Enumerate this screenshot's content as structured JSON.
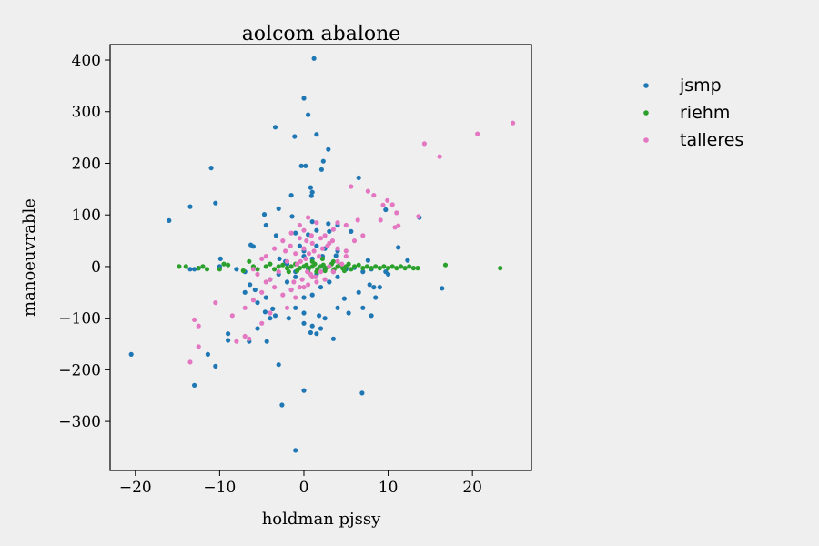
{
  "chart_data": {
    "type": "scatter",
    "title": "aolcom abalone",
    "xlabel": "holdman pjssy",
    "ylabel": "manoeuvrable",
    "xlim": [
      -23,
      27
    ],
    "ylim": [
      -395,
      430
    ],
    "xticks": [
      -20,
      -10,
      0,
      10,
      20
    ],
    "yticks": [
      -300,
      -200,
      -100,
      0,
      100,
      200,
      300,
      400
    ],
    "xtick_labels": [
      "−20",
      "−10",
      "0",
      "10",
      "20"
    ],
    "ytick_labels": [
      "−300",
      "−200",
      "−100",
      "0",
      "100",
      "200",
      "300",
      "400"
    ],
    "grid": false,
    "legend_position": "outside-right",
    "series": [
      {
        "name": "jsmp",
        "color": "#1f77b4",
        "points": [
          [
            1.2,
            403
          ],
          [
            0,
            326
          ],
          [
            0.5,
            294
          ],
          [
            -3.4,
            270
          ],
          [
            -1.1,
            252
          ],
          [
            1.5,
            256
          ],
          [
            2.9,
            227
          ],
          [
            -11,
            191
          ],
          [
            -0.3,
            195
          ],
          [
            0.2,
            195
          ],
          [
            2.3,
            204
          ],
          [
            2.1,
            188
          ],
          [
            6.5,
            172
          ],
          [
            -16,
            89
          ],
          [
            -13.5,
            116
          ],
          [
            -10.5,
            123
          ],
          [
            -1.5,
            138
          ],
          [
            0.8,
            153
          ],
          [
            0.9,
            137
          ],
          [
            1,
            144
          ],
          [
            -3,
            112
          ],
          [
            -4.7,
            101
          ],
          [
            -4.5,
            80
          ],
          [
            -1.4,
            97
          ],
          [
            9.7,
            110
          ],
          [
            13.7,
            95
          ],
          [
            1,
            87
          ],
          [
            2.9,
            83
          ],
          [
            4,
            80
          ],
          [
            -6.3,
            42
          ],
          [
            -6,
            39
          ],
          [
            -3.3,
            60
          ],
          [
            -1,
            65
          ],
          [
            0.5,
            62
          ],
          [
            1.5,
            70
          ],
          [
            3,
            68
          ],
          [
            5.6,
            68
          ],
          [
            -2.9,
            15
          ],
          [
            -2.2,
            10
          ],
          [
            0,
            20
          ],
          [
            1,
            15
          ],
          [
            2.2,
            20
          ],
          [
            3.8,
            21
          ],
          [
            11.2,
            37
          ],
          [
            12.3,
            12
          ],
          [
            7.6,
            12
          ],
          [
            -9.9,
            15
          ],
          [
            -13.5,
            -5
          ],
          [
            -13,
            -5
          ],
          [
            -12.5,
            -3
          ],
          [
            -10,
            0
          ],
          [
            -4,
            -25
          ],
          [
            -6.4,
            -35
          ],
          [
            -7,
            -50
          ],
          [
            -5.8,
            -45
          ],
          [
            -4.6,
            -88
          ],
          [
            -3.7,
            -82
          ],
          [
            -3.4,
            -95
          ],
          [
            -4,
            -100
          ],
          [
            -5.5,
            -120
          ],
          [
            -4.4,
            -145
          ],
          [
            -6.5,
            -145
          ],
          [
            -9,
            -130
          ],
          [
            -9,
            -143
          ],
          [
            -11.4,
            -170
          ],
          [
            -10.5,
            -193
          ],
          [
            -13,
            -230
          ],
          [
            -20.5,
            -170
          ],
          [
            -3,
            -190
          ],
          [
            0,
            -240
          ],
          [
            -2.6,
            -268
          ],
          [
            6.9,
            -245
          ],
          [
            -1,
            -356
          ],
          [
            0,
            -110
          ],
          [
            1,
            -115
          ],
          [
            2,
            -120
          ],
          [
            1.5,
            -130
          ],
          [
            3.5,
            -140
          ],
          [
            0.8,
            -128
          ],
          [
            0,
            -90
          ],
          [
            -1,
            -80
          ],
          [
            -1.8,
            -100
          ],
          [
            1.8,
            -95
          ],
          [
            2.5,
            -100
          ],
          [
            4,
            -80
          ],
          [
            5.3,
            -90
          ],
          [
            7,
            -80
          ],
          [
            4.8,
            -62
          ],
          [
            6.5,
            -50
          ],
          [
            7.8,
            -35
          ],
          [
            8.3,
            -40
          ],
          [
            9,
            -40
          ],
          [
            8.5,
            -60
          ],
          [
            8,
            -95
          ],
          [
            16.4,
            -42
          ],
          [
            2,
            -40
          ],
          [
            3,
            -30
          ],
          [
            4,
            -20
          ],
          [
            1,
            -20
          ],
          [
            -1,
            -20
          ],
          [
            -1.5,
            -45
          ],
          [
            0,
            -60
          ],
          [
            1,
            -55
          ],
          [
            3,
            -30
          ],
          [
            -2,
            5
          ],
          [
            -1,
            -10
          ],
          [
            0.5,
            -5
          ],
          [
            1.5,
            -15
          ],
          [
            2.5,
            -5
          ],
          [
            3.5,
            -10
          ],
          [
            5,
            -5
          ],
          [
            7,
            -10
          ],
          [
            10,
            -15
          ],
          [
            9.7,
            -10
          ],
          [
            8,
            -5
          ],
          [
            6,
            -2
          ],
          [
            -7,
            -10
          ],
          [
            -8,
            -5
          ],
          [
            -3,
            -15
          ],
          [
            -2,
            -30
          ],
          [
            -4.5,
            -60
          ],
          [
            -5.5,
            -70
          ],
          [
            0,
            30
          ],
          [
            1.5,
            40
          ],
          [
            2.5,
            35
          ],
          [
            4,
            30
          ],
          [
            -0.5,
            40
          ]
        ]
      },
      {
        "name": "riehm",
        "color": "#2ca02c",
        "points": [
          [
            -14.8,
            0
          ],
          [
            -14,
            0
          ],
          [
            -12.5,
            -3
          ],
          [
            -11.5,
            -5
          ],
          [
            -12,
            0
          ],
          [
            -9.5,
            5
          ],
          [
            -9,
            3
          ],
          [
            -10,
            -5
          ],
          [
            -7.2,
            -8
          ],
          [
            -6.5,
            10
          ],
          [
            -6,
            0
          ],
          [
            -5.5,
            -5
          ],
          [
            -4.5,
            0
          ],
          [
            -4,
            5
          ],
          [
            -3.5,
            -5
          ],
          [
            -3,
            0
          ],
          [
            -2.5,
            3
          ],
          [
            -2,
            -3
          ],
          [
            -1.5,
            0
          ],
          [
            -1,
            5
          ],
          [
            -0.5,
            -3
          ],
          [
            0,
            0
          ],
          [
            0.3,
            3
          ],
          [
            0.6,
            -3
          ],
          [
            1,
            0
          ],
          [
            1.3,
            5
          ],
          [
            1.6,
            -5
          ],
          [
            2,
            0
          ],
          [
            2.3,
            3
          ],
          [
            2.6,
            -3
          ],
          [
            3,
            0
          ],
          [
            3.3,
            5
          ],
          [
            3.6,
            -5
          ],
          [
            4,
            0
          ],
          [
            4.3,
            3
          ],
          [
            4.6,
            -3
          ],
          [
            5,
            0
          ],
          [
            5.3,
            5
          ],
          [
            5.6,
            -5
          ],
          [
            6,
            0
          ],
          [
            6.5,
            3
          ],
          [
            7,
            -3
          ],
          [
            7.5,
            0
          ],
          [
            8,
            -3
          ],
          [
            8.5,
            0
          ],
          [
            9,
            -3
          ],
          [
            9.5,
            0
          ],
          [
            10,
            -3
          ],
          [
            10.5,
            0
          ],
          [
            11,
            -3
          ],
          [
            11.5,
            0
          ],
          [
            12,
            -3
          ],
          [
            12.5,
            0
          ],
          [
            13,
            -3
          ],
          [
            13.5,
            -3
          ],
          [
            16.8,
            3
          ],
          [
            23.3,
            -3
          ],
          [
            2.2,
            15
          ],
          [
            3.5,
            10
          ],
          [
            1,
            10
          ],
          [
            0.5,
            -10
          ],
          [
            1.5,
            -10
          ],
          [
            2.5,
            -8
          ],
          [
            3.5,
            -8
          ],
          [
            -0.8,
            -8
          ],
          [
            -1.8,
            -10
          ],
          [
            4.8,
            -8
          ]
        ]
      },
      {
        "name": "talleres",
        "color": "#e377c2",
        "points": [
          [
            24.8,
            278
          ],
          [
            20.6,
            257
          ],
          [
            14.3,
            238
          ],
          [
            16.1,
            213
          ],
          [
            5.6,
            155
          ],
          [
            7.6,
            146
          ],
          [
            8.3,
            138
          ],
          [
            9.9,
            128
          ],
          [
            10.5,
            120
          ],
          [
            9.4,
            119
          ],
          [
            11,
            104
          ],
          [
            9.1,
            90
          ],
          [
            6.4,
            90
          ],
          [
            5,
            80
          ],
          [
            13.6,
            97
          ],
          [
            11.2,
            79
          ],
          [
            10.8,
            76
          ],
          [
            4,
            85
          ],
          [
            3.5,
            72
          ],
          [
            2.5,
            60
          ],
          [
            1.5,
            85
          ],
          [
            0.5,
            95
          ],
          [
            -0.5,
            80
          ],
          [
            -1.5,
            65
          ],
          [
            -2.5,
            50
          ],
          [
            -3.5,
            35
          ],
          [
            -4.5,
            20
          ],
          [
            -5,
            15
          ],
          [
            -6,
            -5
          ],
          [
            -5.5,
            -15
          ],
          [
            -4.5,
            -30
          ],
          [
            -3.5,
            -40
          ],
          [
            -2.5,
            -55
          ],
          [
            -1.5,
            -45
          ],
          [
            -0.5,
            -40
          ],
          [
            0.5,
            -35
          ],
          [
            1.5,
            -30
          ],
          [
            2.5,
            -25
          ],
          [
            3.5,
            -10
          ],
          [
            4.5,
            5
          ],
          [
            5,
            20
          ],
          [
            4,
            35
          ],
          [
            3,
            45
          ],
          [
            2,
            55
          ],
          [
            1,
            45
          ],
          [
            0,
            35
          ],
          [
            -1,
            25
          ],
          [
            -2,
            10
          ],
          [
            -3,
            -10
          ],
          [
            -4,
            -25
          ],
          [
            -5,
            -50
          ],
          [
            -6,
            -65
          ],
          [
            -7,
            -80
          ],
          [
            -8.5,
            -95
          ],
          [
            -10.5,
            -70
          ],
          [
            -12.5,
            -115
          ],
          [
            -13,
            -103
          ],
          [
            -12.5,
            -155
          ],
          [
            -13.5,
            -185
          ],
          [
            -7,
            -135
          ],
          [
            -6.5,
            -140
          ],
          [
            -8,
            -145
          ],
          [
            -5,
            -110
          ],
          [
            -4,
            -90
          ],
          [
            -2,
            -80
          ],
          [
            -1,
            -60
          ],
          [
            0,
            -40
          ],
          [
            1,
            -20
          ],
          [
            2,
            -10
          ],
          [
            3,
            0
          ],
          [
            4,
            10
          ],
          [
            5,
            30
          ],
          [
            6,
            50
          ],
          [
            7,
            60
          ],
          [
            0.2,
            15
          ],
          [
            0.6,
            25
          ],
          [
            1.2,
            30
          ],
          [
            1.8,
            20
          ],
          [
            -0.4,
            10
          ],
          [
            -0.8,
            5
          ],
          [
            0.4,
            -10
          ],
          [
            0.8,
            -15
          ],
          [
            1.4,
            -20
          ],
          [
            -0.2,
            -25
          ],
          [
            -1.2,
            -30
          ],
          [
            2.2,
            35
          ],
          [
            2.8,
            40
          ],
          [
            3.4,
            50
          ],
          [
            -1.6,
            40
          ],
          [
            -2.2,
            30
          ],
          [
            0.3,
            50
          ],
          [
            0.9,
            60
          ],
          [
            -0.5,
            55
          ],
          [
            0,
            70
          ]
        ]
      }
    ]
  }
}
